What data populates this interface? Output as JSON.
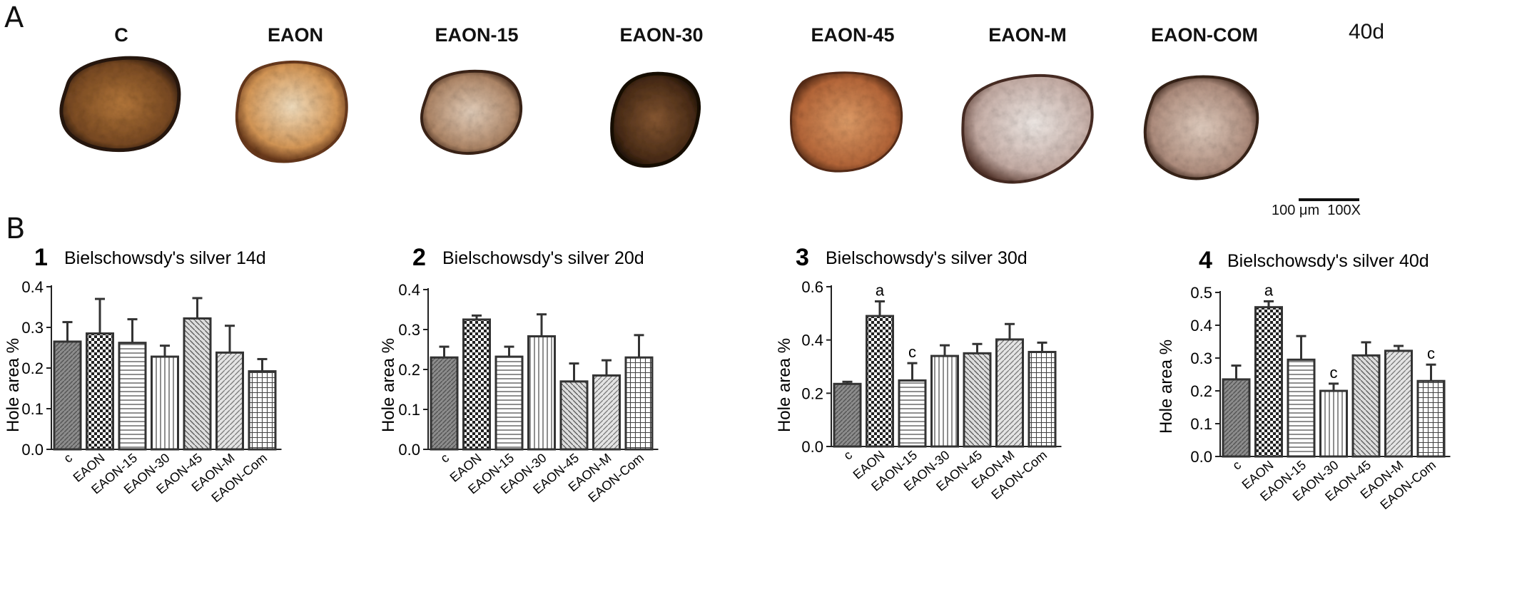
{
  "panels": {
    "a_label": "A",
    "b_label": "B"
  },
  "micrographs": {
    "groups": [
      "C",
      "EAON",
      "EAON-15",
      "EAON-30",
      "EAON-45",
      "EAON-M",
      "EAON-COM"
    ],
    "day": "40d",
    "scale_text": "100 μm  100X"
  },
  "chart_data": [
    {
      "type": "bar",
      "number": "1",
      "title": "Bielschowsdy's silver 14d",
      "ylabel": "Hole area %",
      "ylim": [
        0,
        0.4
      ],
      "yticks": [
        "0.0",
        "0.1",
        "0.2",
        "0.3",
        "0.4"
      ],
      "categories": [
        "c",
        "EAON",
        "EAON-15",
        "EAON-30",
        "EAON-45",
        "EAON-M",
        "EAON-Com"
      ],
      "values": [
        0.265,
        0.285,
        0.262,
        0.228,
        0.322,
        0.238,
        0.192
      ],
      "errors": [
        0.048,
        0.085,
        0.058,
        0.027,
        0.05,
        0.066,
        0.03
      ],
      "annotations": [
        "",
        "",
        "",
        "",
        "",
        "",
        ""
      ]
    },
    {
      "type": "bar",
      "number": "2",
      "title": "Bielschowsdy's silver 20d",
      "ylabel": "Hole area %",
      "ylim": [
        0,
        0.4
      ],
      "yticks": [
        "0.0",
        "0.1",
        "0.2",
        "0.3",
        "0.4"
      ],
      "categories": [
        "c",
        "EAON",
        "EAON-15",
        "EAON-30",
        "EAON-45",
        "EAON-M",
        "EAON-Com"
      ],
      "values": [
        0.23,
        0.325,
        0.232,
        0.283,
        0.17,
        0.185,
        0.23
      ],
      "errors": [
        0.027,
        0.01,
        0.025,
        0.055,
        0.045,
        0.038,
        0.056
      ],
      "annotations": [
        "",
        "",
        "",
        "",
        "",
        "",
        ""
      ]
    },
    {
      "type": "bar",
      "number": "3",
      "title": "Bielschowsdy's silver 30d",
      "ylabel": "Hole area %",
      "ylim": [
        0,
        0.6
      ],
      "yticks": [
        "0.0",
        "0.2",
        "0.4",
        "0.6"
      ],
      "categories": [
        "c",
        "EAON",
        "EAON-15",
        "EAON-30",
        "EAON-45",
        "EAON-M",
        "EAON-Com"
      ],
      "values": [
        0.235,
        0.49,
        0.248,
        0.34,
        0.35,
        0.402,
        0.355
      ],
      "errors": [
        0.008,
        0.055,
        0.065,
        0.04,
        0.035,
        0.058,
        0.035
      ],
      "annotations": [
        "",
        "a",
        "c",
        "",
        "",
        "",
        ""
      ]
    },
    {
      "type": "bar",
      "number": "4",
      "title": "Bielschowsdy's silver 40d",
      "ylabel": "Hole area %",
      "ylim": [
        0,
        0.5
      ],
      "yticks": [
        "0.0",
        "0.1",
        "0.2",
        "0.3",
        "0.4",
        "0.5"
      ],
      "categories": [
        "c",
        "EAON",
        "EAON-15",
        "EAON-30",
        "EAON-45",
        "EAON-M",
        "EAON-Com"
      ],
      "values": [
        0.235,
        0.455,
        0.295,
        0.2,
        0.308,
        0.322,
        0.23
      ],
      "errors": [
        0.042,
        0.018,
        0.072,
        0.022,
        0.04,
        0.015,
        0.05
      ],
      "annotations": [
        "",
        "a",
        "",
        "c",
        "",
        "",
        "c"
      ]
    }
  ]
}
